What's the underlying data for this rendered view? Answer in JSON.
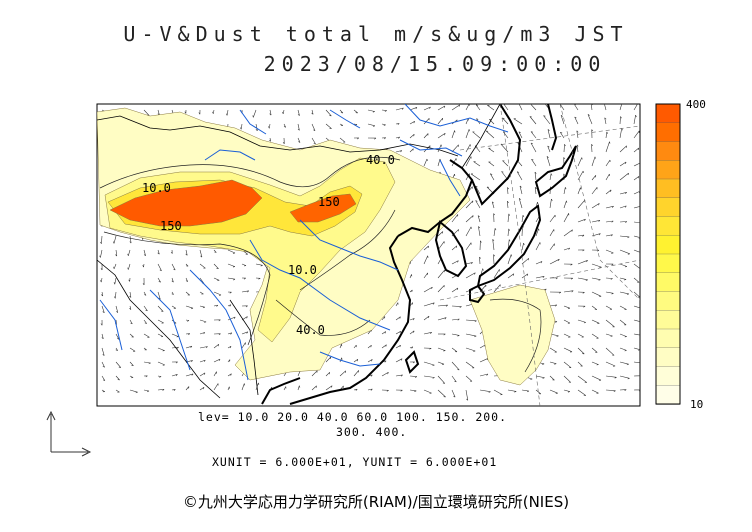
{
  "header": {
    "title": "U-V&Dust total m/s&ug/m3 JST",
    "datetime": "2023/08/15.09:00:00"
  },
  "legend": {
    "max_label": "400",
    "min_label": "10",
    "colors": [
      "#ff5a00",
      "#ff6e00",
      "#ff8a10",
      "#ffa418",
      "#ffbe22",
      "#ffd42c",
      "#ffe636",
      "#fff230",
      "#fff84a",
      "#fffa66",
      "#fffb80",
      "#fffc98",
      "#fffdb0",
      "#fffdc4",
      "#fffed8",
      "#fffee8"
    ]
  },
  "lev_line1": "lev= 10.0 20.0 40.0 60.0 100. 150. 200.",
  "lev_line2": "300. 400.",
  "units_line": "XUNIT = 6.000E+01, YUNIT = 6.000E+01",
  "contour_labels": [
    "10.0",
    "150",
    "40.0",
    "150",
    "10.0",
    "40.0"
  ],
  "credit": "©九州大学応用力学研究所(RIAM)/国立環境研究所(NIES)",
  "colors": {
    "ocean_lines": "#1a5fd6",
    "dust_high": "#ff5a00",
    "dust_low": "#fffdc4"
  }
}
